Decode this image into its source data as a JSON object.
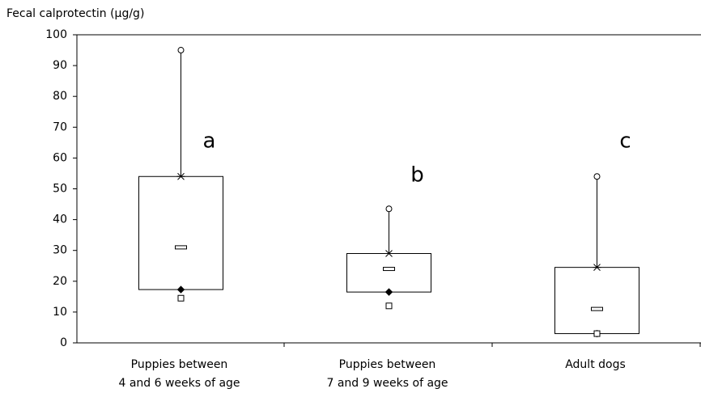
{
  "chart_data": {
    "type": "box",
    "y_label": "Fecal calprotectin (µg/g)",
    "categories": [
      [
        "Puppies between",
        "4 and 6 weeks of age"
      ],
      [
        "Puppies between",
        "7 and 9 weeks of age"
      ],
      [
        "Adult dogs"
      ]
    ],
    "max": [
      95,
      43.5,
      54
    ],
    "q3": [
      54,
      29,
      24.5
    ],
    "median": [
      31,
      24,
      11
    ],
    "q1": [
      17.3,
      16.5,
      3
    ],
    "min": [
      14.5,
      12,
      3
    ],
    "annotations": [
      "a",
      "b",
      "c"
    ],
    "ylim": [
      0,
      100
    ],
    "yticks": [
      0,
      10,
      20,
      30,
      40,
      50,
      60,
      70,
      80,
      90,
      100
    ]
  }
}
